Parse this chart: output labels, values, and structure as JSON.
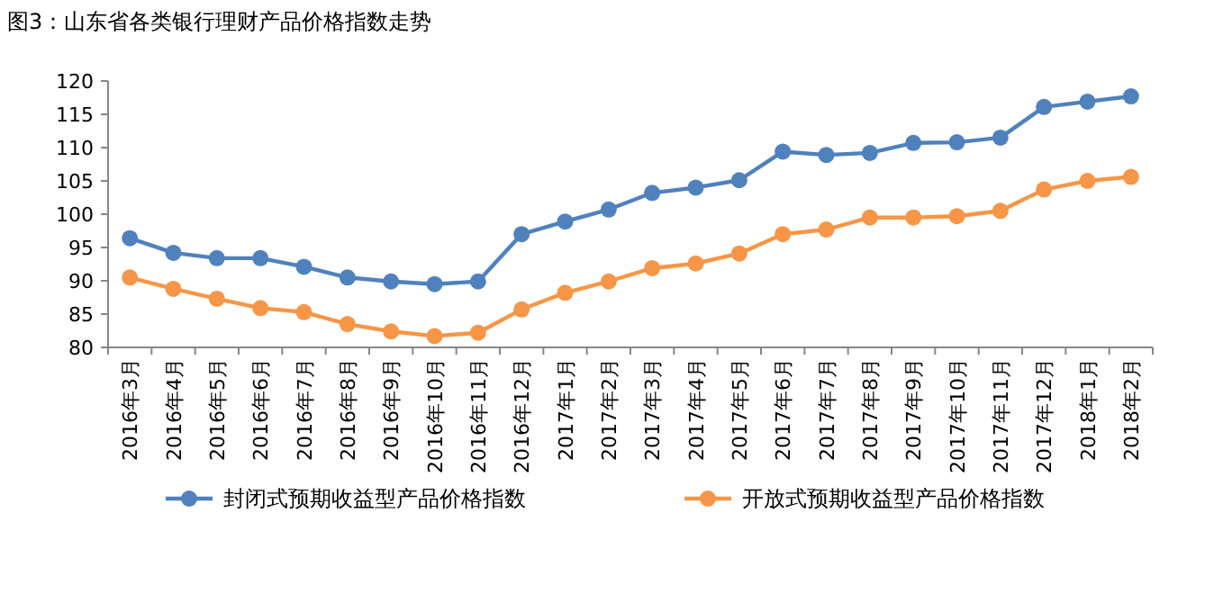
{
  "chart_data": {
    "type": "line",
    "title": "图3：山东省各类银行理财产品价格指数走势",
    "categories": [
      "2016年3月",
      "2016年4月",
      "2016年5月",
      "2016年6月",
      "2016年7月",
      "2016年8月",
      "2016年9月",
      "2016年10月",
      "2016年11月",
      "2016年12月",
      "2017年1月",
      "2017年2月",
      "2017年3月",
      "2017年4月",
      "2017年5月",
      "2017年6月",
      "2017年7月",
      "2017年8月",
      "2017年9月",
      "2017年10月",
      "2017年11月",
      "2017年12月",
      "2018年1月",
      "2018年2月"
    ],
    "series": [
      {
        "name": "封闭式预期收益型产品价格指数",
        "color": "#4f81bd",
        "values": [
          96.4,
          94.2,
          93.4,
          93.4,
          92.1,
          90.5,
          89.9,
          89.5,
          89.9,
          97.0,
          98.9,
          100.7,
          103.2,
          104.0,
          105.1,
          109.4,
          108.9,
          109.2,
          110.7,
          110.8,
          111.5,
          116.1,
          116.9,
          117.7
        ]
      },
      {
        "name": "开放式预期收益型产品价格指数",
        "color": "#f79646",
        "values": [
          90.5,
          88.8,
          87.3,
          85.9,
          85.3,
          83.5,
          82.4,
          81.7,
          82.2,
          85.7,
          88.2,
          89.9,
          91.9,
          92.6,
          94.1,
          97.0,
          97.7,
          99.5,
          99.5,
          99.7,
          100.5,
          103.7,
          105.0,
          105.6
        ]
      }
    ],
    "ylim": [
      80,
      120
    ],
    "yticks": [
      80,
      85,
      90,
      95,
      100,
      105,
      110,
      115,
      120
    ],
    "grid": false,
    "legend": "bottom",
    "marker": "circle",
    "line_style": "solid"
  }
}
